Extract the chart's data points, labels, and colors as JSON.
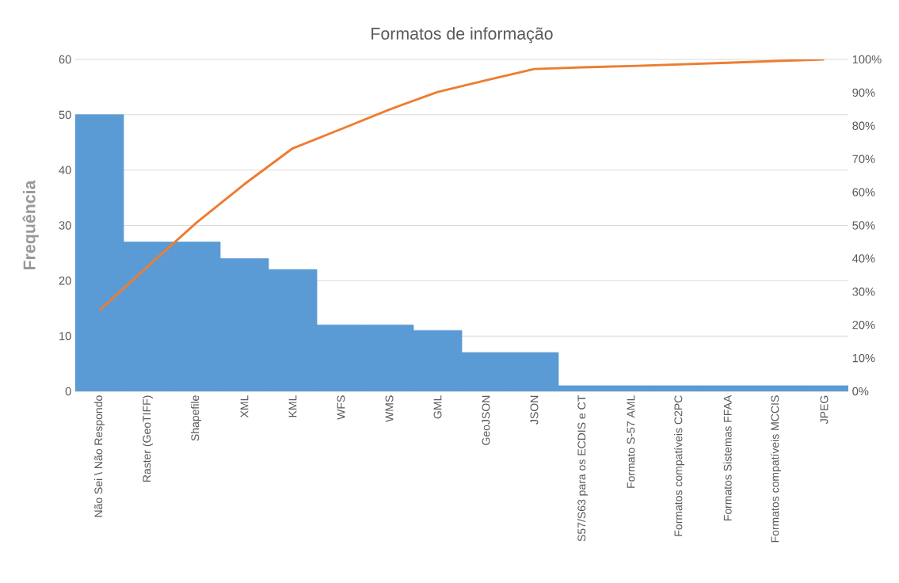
{
  "chart_data": {
    "type": "bar",
    "title": "Formatos de informação",
    "ylabel": "Frequência",
    "categories": [
      "Não Sei \\ Não Respondo",
      "Raster (GeoTIFF)",
      "Shapefile",
      "XML",
      "KML",
      "WFS",
      "WMS",
      "GML",
      "GeoJSON",
      "JSON",
      "S57/S63 para os ECDIS e CT",
      "Formato S-57 AML",
      "Formatos compatíveis C2PC",
      "Formatos Sistemas FFAA",
      "Formatos compatíveis MCCIS",
      "JPEG"
    ],
    "series": [
      {
        "color": "#5b9bd5",
        "values": [
          50,
          27,
          27,
          24,
          22,
          12,
          12,
          11,
          7,
          7,
          1,
          1,
          1,
          1,
          1,
          1
        ]
      },
      {
        "type": "line",
        "axis": "y2",
        "color": "#ed7d31",
        "values": [
          24.4,
          37.6,
          50.7,
          62.4,
          73.2,
          79.0,
          84.9,
          90.2,
          93.7,
          97.1,
          97.6,
          98.0,
          98.5,
          99.0,
          99.5,
          100
        ]
      }
    ],
    "ylim": [
      0,
      60
    ],
    "yticks": [
      0,
      10,
      20,
      30,
      40,
      50,
      60
    ],
    "y2lim": [
      0,
      100
    ],
    "y2ticks": [
      {
        "value": 0,
        "label": "0%"
      },
      {
        "value": 10,
        "label": "10%"
      },
      {
        "value": 20,
        "label": "20%"
      },
      {
        "value": 30,
        "label": "30%"
      },
      {
        "value": 40,
        "label": "40%"
      },
      {
        "value": 50,
        "label": "50%"
      },
      {
        "value": 60,
        "label": "60%"
      },
      {
        "value": 70,
        "label": "70%"
      },
      {
        "value": 80,
        "label": "80%"
      },
      {
        "value": 90,
        "label": "90%"
      },
      {
        "value": 100,
        "label": "100%"
      }
    ],
    "grid": "y"
  }
}
